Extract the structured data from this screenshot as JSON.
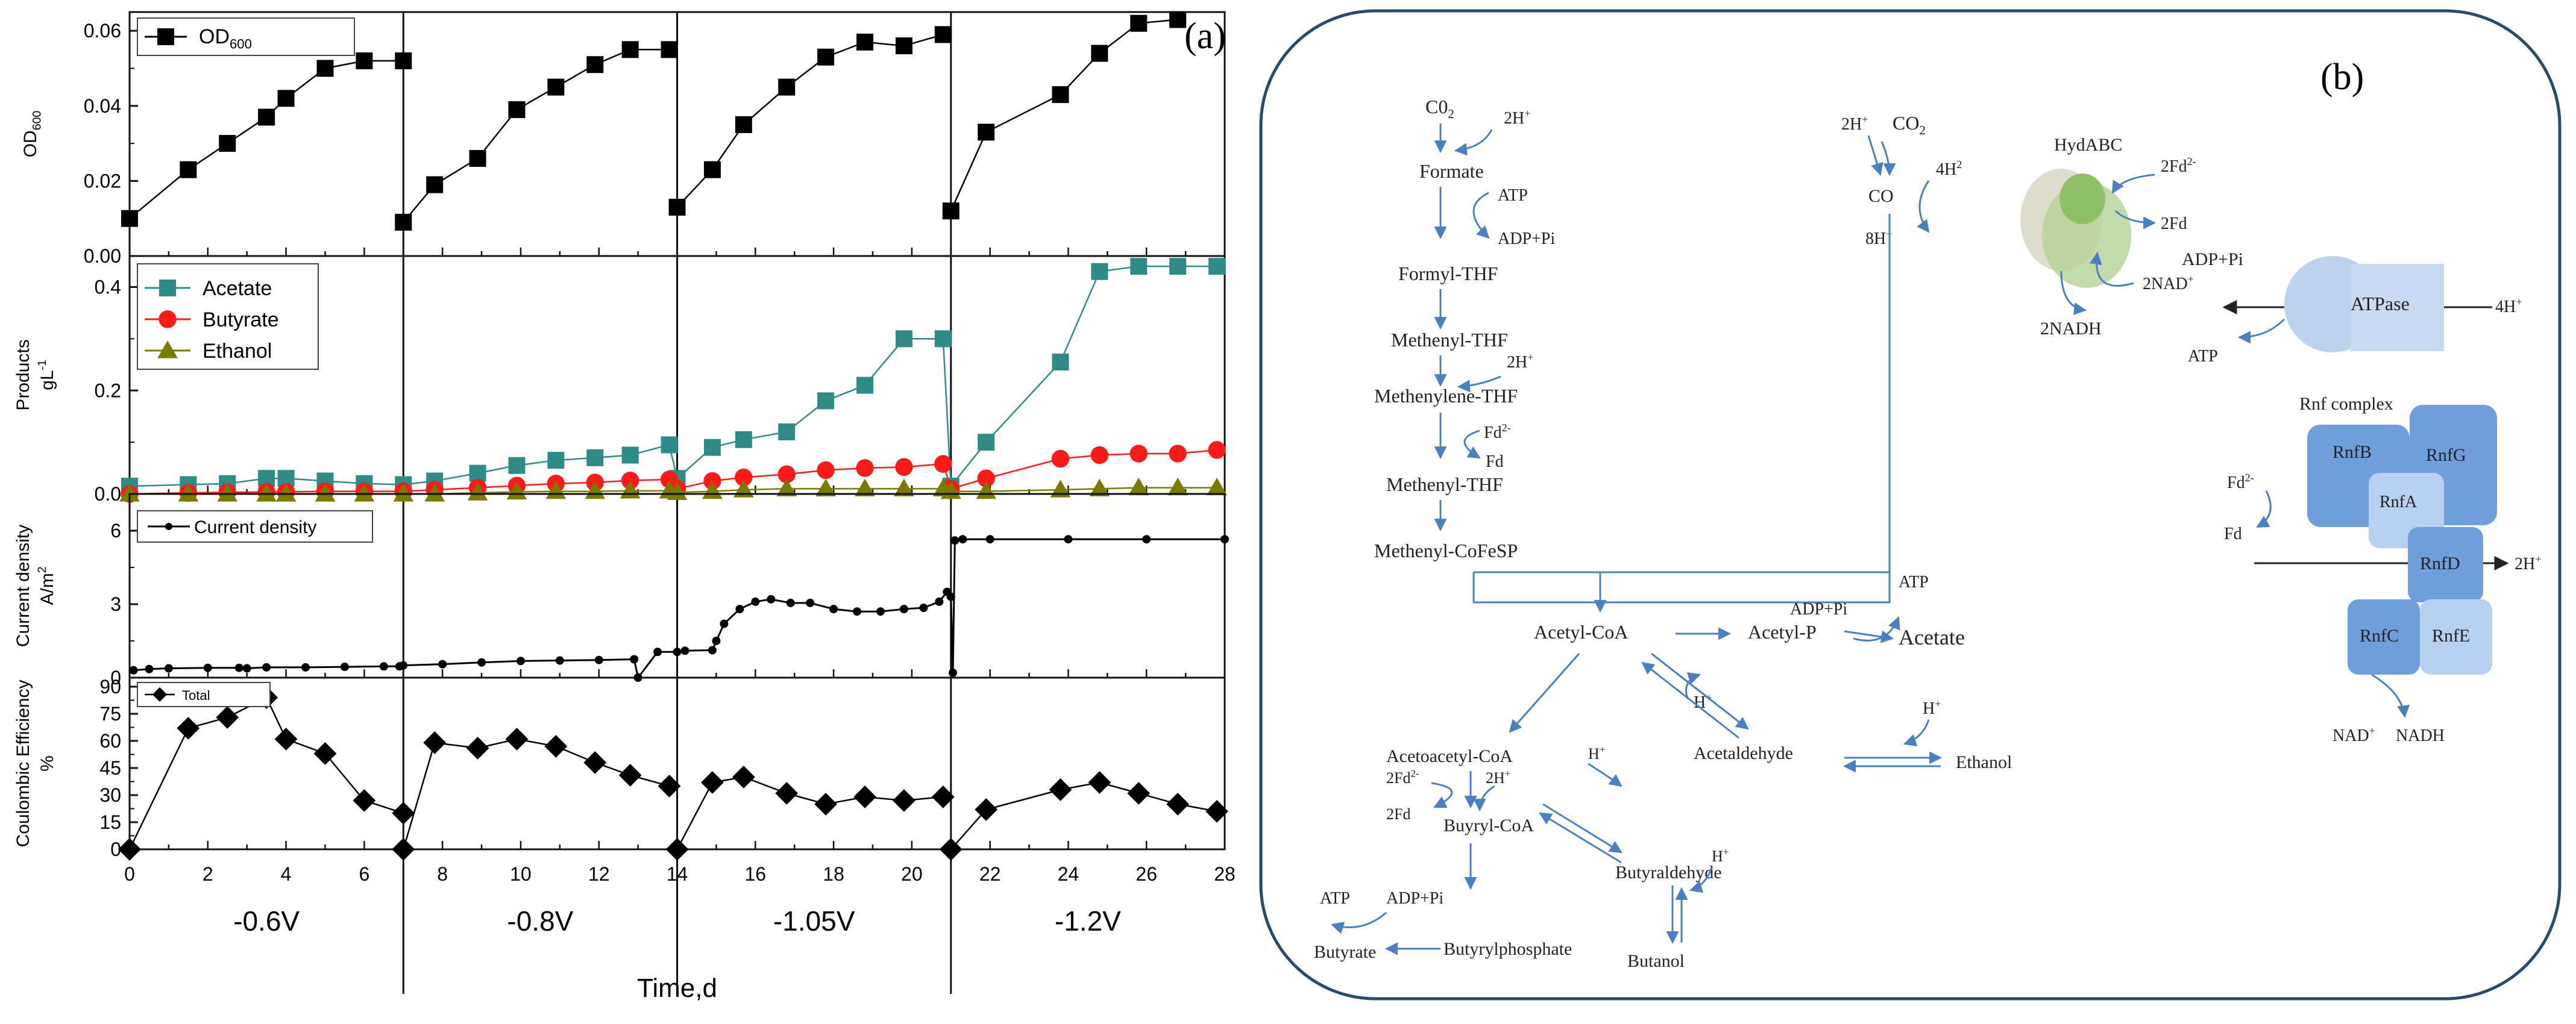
{
  "panel_a": {
    "label": "(a)",
    "x_title": "Time,d",
    "voltages": [
      "-0.6V",
      "-0.8V",
      "-1.05V",
      "-1.2V"
    ],
    "x_ticks": [
      "0",
      "2",
      "4",
      "6",
      "8",
      "10",
      "12",
      "14",
      "16",
      "18",
      "20",
      "22",
      "24",
      "26",
      "28"
    ]
  },
  "panel_b": {
    "label": "(b)",
    "nodes": [
      {
        "id": "co2_left",
        "text": "C0",
        "sub": "2",
        "sup": ""
      },
      {
        "id": "h2_formate",
        "text": "2H",
        "sub": "",
        "sup": "+"
      },
      {
        "id": "formate",
        "text": "Formate",
        "sub": "",
        "sup": ""
      },
      {
        "id": "atp_1",
        "text": "ATP",
        "sub": "",
        "sup": ""
      },
      {
        "id": "adp_pi_1",
        "text": "ADP+Pi",
        "sub": "",
        "sup": ""
      },
      {
        "id": "formyl_thf",
        "text": "Formyl-THF",
        "sub": "",
        "sup": ""
      },
      {
        "id": "methenyl_thf_1",
        "text": "Methenyl-THF",
        "sub": "",
        "sup": ""
      },
      {
        "id": "h2_methylene",
        "text": "2H",
        "sub": "",
        "sup": "+"
      },
      {
        "id": "methylene_thf",
        "text": "Methenylene-THF",
        "sub": "",
        "sup": ""
      },
      {
        "id": "fd2_1",
        "text": "Fd",
        "sub": "",
        "sup": "2-"
      },
      {
        "id": "fd_1",
        "text": "Fd",
        "sub": "",
        "sup": ""
      },
      {
        "id": "methenyl_thf_2",
        "text": "Methenyl-THF",
        "sub": "",
        "sup": ""
      },
      {
        "id": "methenyl_cofesp",
        "text": "Methenyl-CoFeSP",
        "sub": "",
        "sup": ""
      },
      {
        "id": "h2_co",
        "text": "2H",
        "sub": "",
        "sup": "+"
      },
      {
        "id": "co2_right",
        "text": "CO",
        "sub": "2",
        "sup": ""
      },
      {
        "id": "h2_4",
        "text": "4H",
        "sub": "",
        "sup": "2"
      },
      {
        "id": "co",
        "text": "CO",
        "sub": "",
        "sup": ""
      },
      {
        "id": "h8",
        "text": "8H",
        "sub": "",
        "sup": "+"
      },
      {
        "id": "hydabc",
        "text": "HydABC",
        "sub": "",
        "sup": ""
      },
      {
        "id": "fd2_2",
        "text": "2Fd",
        "sub": "",
        "sup": "2-"
      },
      {
        "id": "fd_2",
        "text": "2Fd",
        "sub": "",
        "sup": ""
      },
      {
        "id": "nad_1",
        "text": "2NAD",
        "sub": "",
        "sup": "+"
      },
      {
        "id": "nadh_1",
        "text": "2NADH",
        "sub": "",
        "sup": ""
      },
      {
        "id": "acetyl_coa",
        "text": "Acetyl-CoA",
        "sub": "",
        "sup": ""
      },
      {
        "id": "acetyl_p",
        "text": "Acetyl-P",
        "sub": "",
        "sup": ""
      },
      {
        "id": "adp_pi_2",
        "text": "ADP+Pi",
        "sub": "",
        "sup": ""
      },
      {
        "id": "atp_2",
        "text": "ATP",
        "sub": "",
        "sup": ""
      },
      {
        "id": "acetate",
        "text": "Acetate",
        "sub": "",
        "sup": ""
      },
      {
        "id": "h_acetyl",
        "text": "H",
        "sub": "",
        "sup": "+"
      },
      {
        "id": "acetaldehyde",
        "text": "Acetaldehyde",
        "sub": "",
        "sup": ""
      },
      {
        "id": "h_ethanol",
        "text": "H",
        "sub": "",
        "sup": "+"
      },
      {
        "id": "ethanol",
        "text": "Ethanol",
        "sub": "",
        "sup": ""
      },
      {
        "id": "acetoacetyl_coa",
        "text": "Acetoacetyl-CoA",
        "sub": "",
        "sup": ""
      },
      {
        "id": "fd2_3",
        "text": "2Fd",
        "sub": "",
        "sup": "2-"
      },
      {
        "id": "h2_buty",
        "text": "2H",
        "sub": "",
        "sup": "+"
      },
      {
        "id": "h_buty",
        "text": "H",
        "sub": "",
        "sup": "+"
      },
      {
        "id": "fd_3",
        "text": "2Fd",
        "sub": "",
        "sup": ""
      },
      {
        "id": "butyryl_coa",
        "text": "Buyryl-CoA",
        "sub": "",
        "sup": ""
      },
      {
        "id": "butyraldehyde",
        "text": "Butyraldehyde",
        "sub": "",
        "sup": ""
      },
      {
        "id": "h_butanol",
        "text": "H",
        "sub": "",
        "sup": "+"
      },
      {
        "id": "atp_3",
        "text": "ATP",
        "sub": "",
        "sup": ""
      },
      {
        "id": "adp_pi_3",
        "text": "ADP+Pi",
        "sub": "",
        "sup": ""
      },
      {
        "id": "butyrate",
        "text": "Butyrate",
        "sub": "",
        "sup": ""
      },
      {
        "id": "butyrylphosphate",
        "text": "Butyrylphosphate",
        "sub": "",
        "sup": ""
      },
      {
        "id": "butanol",
        "text": "Butanol",
        "sub": "",
        "sup": ""
      },
      {
        "id": "adp_pi_4",
        "text": "ADP+Pi",
        "sub": "",
        "sup": ""
      },
      {
        "id": "atp_4",
        "text": "ATP",
        "sub": "",
        "sup": ""
      },
      {
        "id": "atpase",
        "text": "ATPase",
        "sub": "",
        "sup": ""
      },
      {
        "id": "h4",
        "text": "4H",
        "sub": "",
        "sup": "+"
      },
      {
        "id": "rnf_complex",
        "text": "Rnf complex",
        "sub": "",
        "sup": ""
      },
      {
        "id": "fd2_4",
        "text": "Fd",
        "sub": "",
        "sup": "2-"
      },
      {
        "id": "fd_4",
        "text": "Fd",
        "sub": "",
        "sup": ""
      },
      {
        "id": "rnfb",
        "text": "RnfB",
        "sub": "",
        "sup": ""
      },
      {
        "id": "rnfg",
        "text": "RnfG",
        "sub": "",
        "sup": ""
      },
      {
        "id": "rnfa",
        "text": "RnfA",
        "sub": "",
        "sup": ""
      },
      {
        "id": "rnfd",
        "text": "RnfD",
        "sub": "",
        "sup": ""
      },
      {
        "id": "h2_rnf",
        "text": "2H",
        "sub": "",
        "sup": "+"
      },
      {
        "id": "rnfc",
        "text": "RnfC",
        "sub": "",
        "sup": ""
      },
      {
        "id": "rnfe",
        "text": "RnfE",
        "sub": "",
        "sup": ""
      },
      {
        "id": "nad_2",
        "text": "NAD",
        "sub": "",
        "sup": "+"
      },
      {
        "id": "nadh_2",
        "text": "NADH",
        "sub": "",
        "sup": ""
      }
    ]
  },
  "chart_data": [
    {
      "type": "line",
      "title": "",
      "xlabel": "Time,d",
      "ylabel": "OD600",
      "ylabel_main": "OD",
      "ylabel_sub": "600",
      "xlim": [
        0,
        28
      ],
      "ylim": [
        0,
        0.065
      ],
      "yticks": [
        "0.00",
        "0.02",
        "0.04",
        "0.06"
      ],
      "legend_location": "top-left",
      "series": [
        {
          "name": "OD",
          "name_sub": "600",
          "marker": "square",
          "color": "#000000",
          "segments": [
            {
              "x": [
                0,
                1.5,
                2.5,
                3.5,
                4,
                5,
                6,
                7
              ],
              "y": [
                0.01,
                0.023,
                0.03,
                0.037,
                0.042,
                0.05,
                0.052,
                0.052
              ]
            },
            {
              "x": [
                7,
                7.8,
                8.9,
                9.9,
                10.9,
                11.9,
                12.8,
                13.8
              ],
              "y": [
                0.009,
                0.019,
                0.026,
                0.039,
                0.045,
                0.051,
                0.055,
                0.055
              ]
            },
            {
              "x": [
                14,
                14.9,
                15.7,
                16.8,
                17.8,
                18.8,
                19.8,
                20.8
              ],
              "y": [
                0.013,
                0.023,
                0.035,
                0.045,
                0.053,
                0.057,
                0.056,
                0.059
              ]
            },
            {
              "x": [
                21,
                21.9,
                23.8,
                24.8,
                25.8,
                26.8
              ],
              "y": [
                0.012,
                0.033,
                0.043,
                0.054,
                0.062,
                0.063
              ]
            }
          ]
        }
      ]
    },
    {
      "type": "line",
      "title": "",
      "xlabel": "Time,d",
      "ylabel": "Products gL-1",
      "ylabel_main": "Products",
      "ylabel_unit": "gL",
      "ylabel_unit_sup": "-1",
      "xlim": [
        0,
        28
      ],
      "ylim": [
        0,
        0.46
      ],
      "yticks": [
        "0.0",
        "0.2",
        "0.4"
      ],
      "legend_location": "top-left",
      "series": [
        {
          "name": "Acetate",
          "marker": "square",
          "color": "#2e8b86",
          "x": [
            0,
            1.5,
            2.5,
            3.5,
            4,
            5,
            6,
            7,
            7.8,
            8.9,
            9.9,
            10.9,
            11.9,
            12.8,
            13.8,
            14,
            14.9,
            15.7,
            16.8,
            17.8,
            18.8,
            19.8,
            20.8,
            21,
            21.9,
            23.8,
            24.8,
            25.8,
            26.8,
            27.8
          ],
          "y": [
            0.015,
            0.018,
            0.02,
            0.03,
            0.03,
            0.025,
            0.02,
            0.018,
            0.025,
            0.04,
            0.055,
            0.065,
            0.07,
            0.075,
            0.095,
            0.03,
            0.09,
            0.105,
            0.12,
            0.18,
            0.21,
            0.3,
            0.3,
            0.015,
            0.1,
            0.255,
            0.43,
            0.44,
            0.44,
            0.44
          ]
        },
        {
          "name": "Butyrate",
          "marker": "circle",
          "color": "#ff1a1a",
          "x": [
            0,
            1.5,
            2.5,
            3.5,
            4,
            5,
            6,
            7,
            7.8,
            8.9,
            9.9,
            10.9,
            11.9,
            12.8,
            13.8,
            14,
            14.9,
            15.7,
            16.8,
            17.8,
            18.8,
            19.8,
            20.8,
            21,
            21.9,
            23.8,
            24.8,
            25.8,
            26.8,
            27.8
          ],
          "y": [
            0.0,
            0.002,
            0.003,
            0.004,
            0.004,
            0.005,
            0.005,
            0.005,
            0.008,
            0.012,
            0.016,
            0.02,
            0.022,
            0.026,
            0.028,
            0.01,
            0.025,
            0.032,
            0.038,
            0.046,
            0.05,
            0.052,
            0.058,
            0.01,
            0.03,
            0.068,
            0.075,
            0.078,
            0.078,
            0.085
          ]
        },
        {
          "name": "Ethanol",
          "marker": "triangle",
          "color": "#7a7a00",
          "x": [
            0,
            1.5,
            2.5,
            3.5,
            4,
            5,
            6,
            7,
            7.8,
            8.9,
            9.9,
            10.9,
            11.9,
            12.8,
            13.8,
            14,
            14.9,
            15.7,
            16.8,
            17.8,
            18.8,
            19.8,
            20.8,
            21,
            21.9,
            23.8,
            24.8,
            25.8,
            26.8,
            27.8
          ],
          "y": [
            0.0,
            0.0,
            0.0,
            0.0,
            0.0,
            0.0,
            0.0,
            0.0,
            0.0,
            0.002,
            0.004,
            0.005,
            0.005,
            0.006,
            0.006,
            0.003,
            0.005,
            0.008,
            0.01,
            0.01,
            0.01,
            0.01,
            0.01,
            0.005,
            0.005,
            0.008,
            0.01,
            0.012,
            0.012,
            0.012
          ]
        }
      ]
    },
    {
      "type": "line",
      "title": "",
      "xlabel": "Time,d",
      "ylabel": "Current density A/m2",
      "ylabel_main": "Current density",
      "ylabel_unit": "A/m",
      "ylabel_unit_sup": "2",
      "xlim": [
        0,
        28
      ],
      "ylim": [
        0,
        7.5
      ],
      "yticks": [
        "0",
        "3",
        "6"
      ],
      "legend_location": "top-left",
      "series": [
        {
          "name": "Current density",
          "marker": "dot",
          "color": "#000000",
          "x": [
            0.1,
            0.5,
            1.0,
            2.0,
            2.8,
            3.0,
            3.5,
            4.5,
            5.5,
            6.5,
            6.9,
            7.0,
            8,
            9,
            10,
            11,
            12,
            12.9,
            13.0,
            13.5,
            14.0,
            14.2,
            14.9,
            15.0,
            15.2,
            15.6,
            16.0,
            16.4,
            16.9,
            17.4,
            18,
            18.6,
            19.2,
            19.8,
            20.3,
            20.7,
            20.9,
            21.0,
            21.05,
            21.1,
            21.3,
            22,
            24,
            26,
            28
          ],
          "y": [
            0.3,
            0.35,
            0.38,
            0.4,
            0.4,
            0.38,
            0.42,
            0.42,
            0.44,
            0.46,
            0.46,
            0.5,
            0.55,
            0.62,
            0.68,
            0.7,
            0.72,
            0.75,
            0.0,
            1.05,
            1.05,
            1.1,
            1.12,
            1.5,
            2.2,
            2.8,
            3.1,
            3.2,
            3.05,
            3.05,
            2.8,
            2.7,
            2.7,
            2.8,
            2.85,
            3.1,
            3.5,
            3.3,
            0.2,
            5.6,
            5.65,
            5.65,
            5.65,
            5.65,
            5.65
          ]
        }
      ]
    },
    {
      "type": "line",
      "title": "",
      "xlabel": "Time,d",
      "ylabel": "Coulombic Efficiency %",
      "ylabel_main": "Coulombic Efficiency",
      "ylabel_unit": "%",
      "xlim": [
        0,
        28
      ],
      "ylim": [
        0,
        95
      ],
      "yticks": [
        "0",
        "15",
        "30",
        "45",
        "60",
        "75",
        "90"
      ],
      "legend_location": "top-left",
      "series": [
        {
          "name": "Total",
          "marker": "diamond",
          "color": "#000000",
          "segments": [
            {
              "x": [
                0,
                1.5,
                2.5,
                3.5,
                4,
                5,
                6,
                7
              ],
              "y": [
                0,
                67,
                73,
                84,
                61,
                53,
                27,
                20
              ]
            },
            {
              "x": [
                7,
                7.8,
                8.9,
                9.9,
                10.9,
                11.9,
                12.8,
                13.8
              ],
              "y": [
                0,
                59,
                56,
                61,
                57,
                48,
                41,
                35
              ]
            },
            {
              "x": [
                14,
                14.9,
                15.7,
                16.8,
                17.8,
                18.8,
                19.8,
                20.8
              ],
              "y": [
                0,
                37,
                40,
                31,
                25,
                29,
                27,
                29
              ]
            },
            {
              "x": [
                21,
                21.9,
                23.8,
                24.8,
                25.8,
                26.8,
                27.8
              ],
              "y": [
                0,
                22,
                33,
                37,
                31,
                25,
                21
              ]
            }
          ]
        }
      ]
    }
  ]
}
